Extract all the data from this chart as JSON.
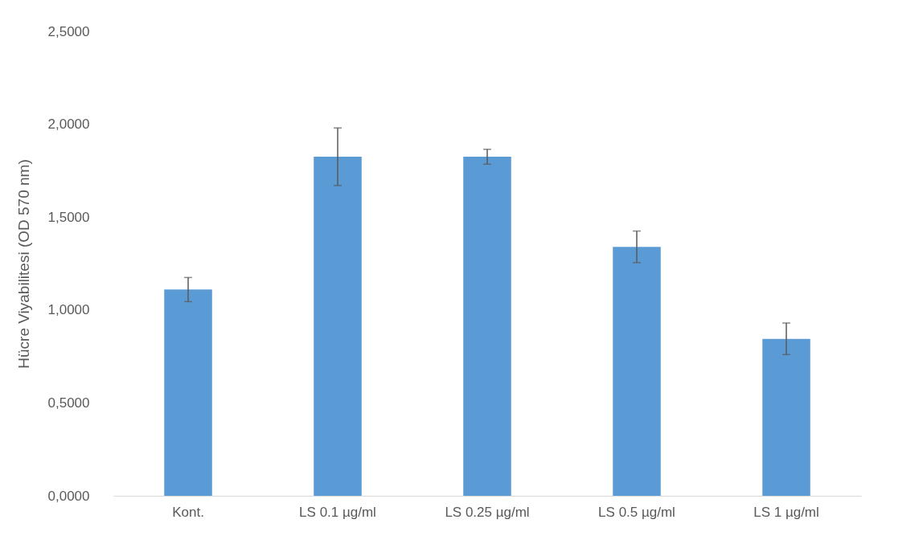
{
  "chart_data": {
    "type": "bar",
    "ylabel": "Hücre Viyabilitesi (OD 570 nm)",
    "categories": [
      "Kont.",
      "LS 0.1 µg/ml",
      "LS 0.25 µg/ml",
      "LS 0.5 µg/ml",
      "LS 1 µg/ml"
    ],
    "values": [
      1.11,
      1.825,
      1.825,
      1.34,
      0.845
    ],
    "errors": [
      0.065,
      0.155,
      0.04,
      0.085,
      0.085
    ],
    "color": "#5b9bd5",
    "ylim": [
      0,
      2.5
    ],
    "yticks": [
      {
        "value": 0,
        "label": "0,0000"
      },
      {
        "value": 0.5,
        "label": "0,5000"
      },
      {
        "value": 1,
        "label": "1,0000"
      },
      {
        "value": 1.5,
        "label": "1,5000"
      },
      {
        "value": 2,
        "label": "2,0000"
      },
      {
        "value": 2.5,
        "label": "2,5000"
      }
    ],
    "grid": false
  }
}
